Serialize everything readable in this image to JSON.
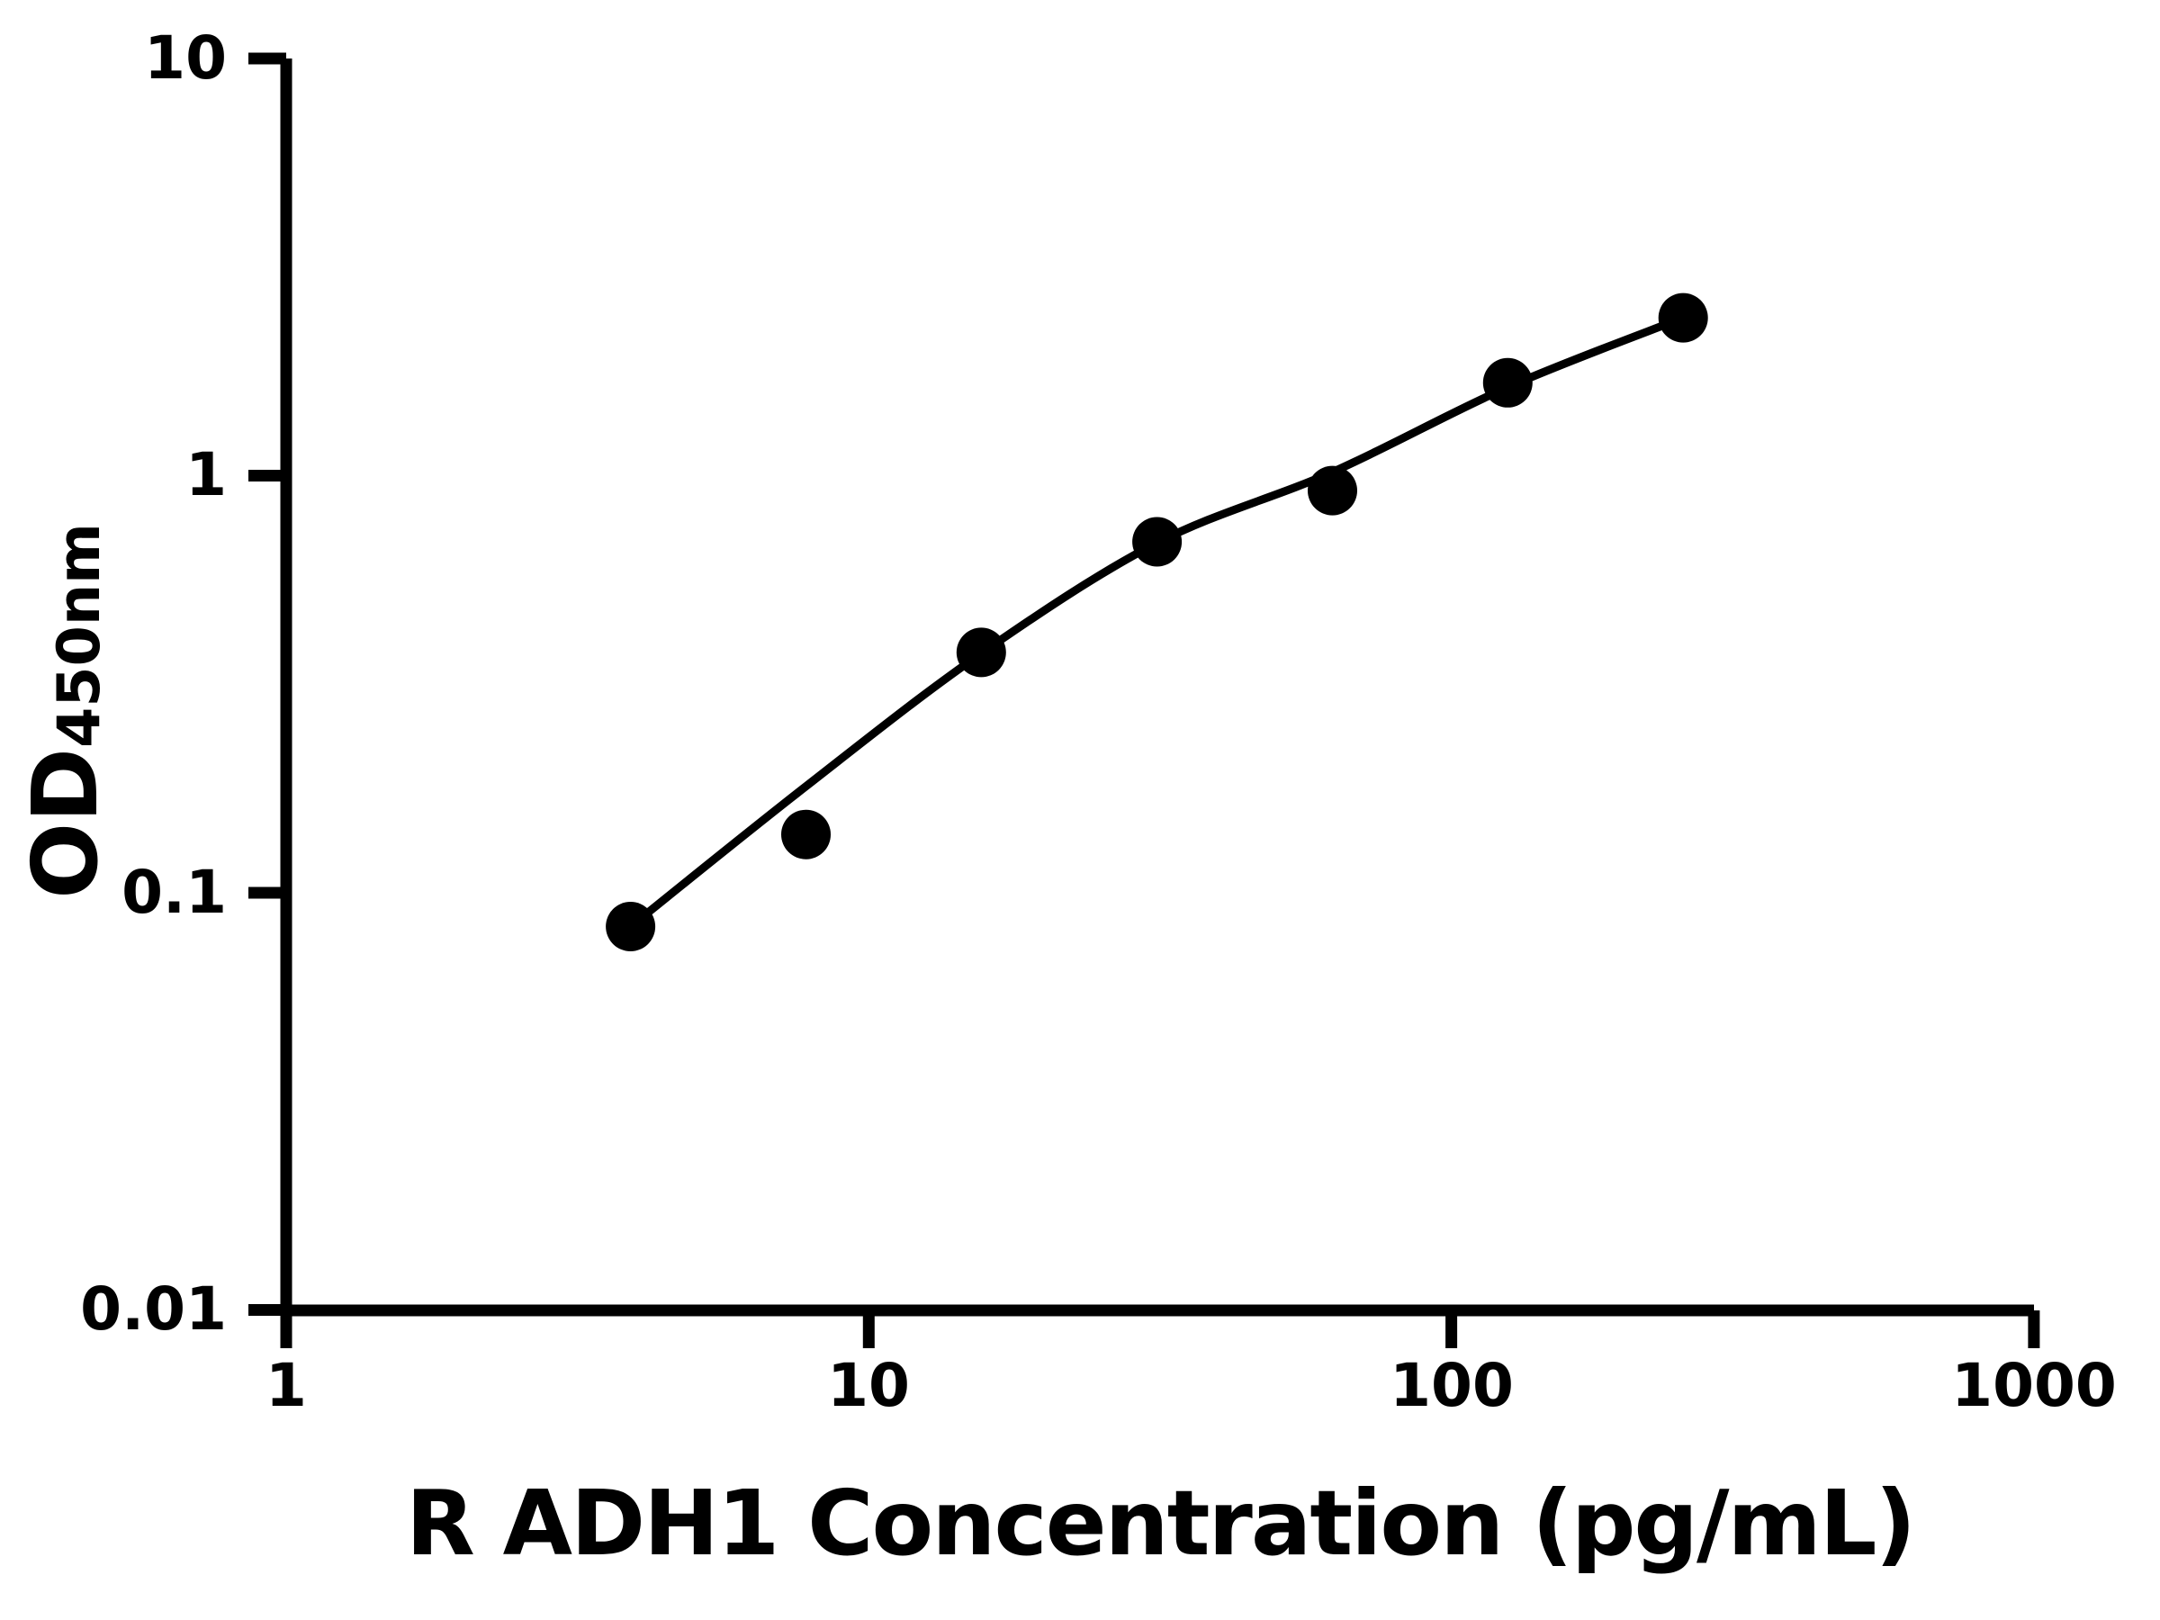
{
  "chart_data": {
    "type": "scatter",
    "title": "",
    "xlabel": "R ADH1 Concentration (pg/mL)",
    "ylabel_main": "OD",
    "ylabel_sub": "450nm",
    "x_scale": "log10",
    "y_scale": "log10",
    "xlim": [
      1,
      1000
    ],
    "ylim": [
      0.01,
      10
    ],
    "x_ticks": [
      1,
      10,
      100,
      1000
    ],
    "x_ticklabels": [
      "1",
      "10",
      "100",
      "1000"
    ],
    "y_ticks": [
      10,
      1,
      0.1,
      0.01
    ],
    "y_ticklabels": [
      "10",
      "1",
      "0.1",
      "0.01"
    ],
    "grid": false,
    "legend": null,
    "axis_color": "#000000",
    "series": [
      {
        "name": "standard-points",
        "type": "scatter",
        "marker": "circle",
        "color": "#000000",
        "x": [
          3.9,
          7.8,
          15.6,
          31.25,
          62.5,
          125,
          250
        ],
        "y": [
          0.083,
          0.138,
          0.377,
          0.694,
          0.921,
          1.67,
          2.39
        ]
      },
      {
        "name": "fitted-curve",
        "type": "line",
        "color": "#000000",
        "x": [
          3.9,
          7.8,
          15.6,
          31.25,
          62.5,
          125,
          250
        ],
        "y": [
          0.083,
          0.18,
          0.375,
          0.69,
          1.02,
          1.63,
          2.39
        ]
      }
    ]
  }
}
